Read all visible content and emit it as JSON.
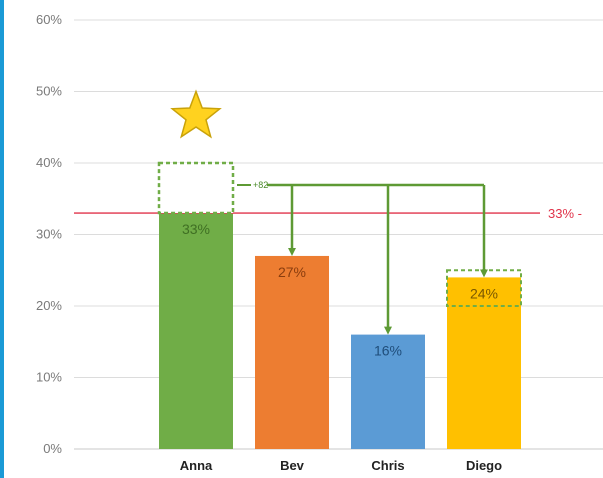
{
  "chart_data": {
    "type": "bar",
    "categories": [
      "Anna",
      "Bev",
      "Chris",
      "Diego"
    ],
    "values": [
      33,
      27,
      16,
      24
    ],
    "data_labels": [
      "33%",
      "27%",
      "16%",
      "24%"
    ],
    "value_format": "percent",
    "ylim": [
      0,
      60
    ],
    "yticks": [
      0,
      10,
      20,
      30,
      40,
      50,
      60
    ],
    "ytick_labels": [
      "0%",
      "10%",
      "20%",
      "30%",
      "40%",
      "50%",
      "60%"
    ],
    "grid": true,
    "title": "",
    "xlabel": "",
    "ylabel": "",
    "colors": [
      "#70ad47",
      "#ed7d31",
      "#5b9bd5",
      "#ffc000"
    ],
    "threshold": {
      "value": 33,
      "label": "33% -",
      "color": "#e0334a"
    },
    "anna_excess": {
      "from": 33,
      "to": 40,
      "label": "+82",
      "color": "#70ad47"
    },
    "diego_gap": {
      "from": 20,
      "to": 25
    },
    "arrow_targets": [
      "Bev",
      "Chris",
      "Diego"
    ],
    "arrow_color": "#5e9a34",
    "star_on": "Anna",
    "star_color": "#ffd21f"
  }
}
